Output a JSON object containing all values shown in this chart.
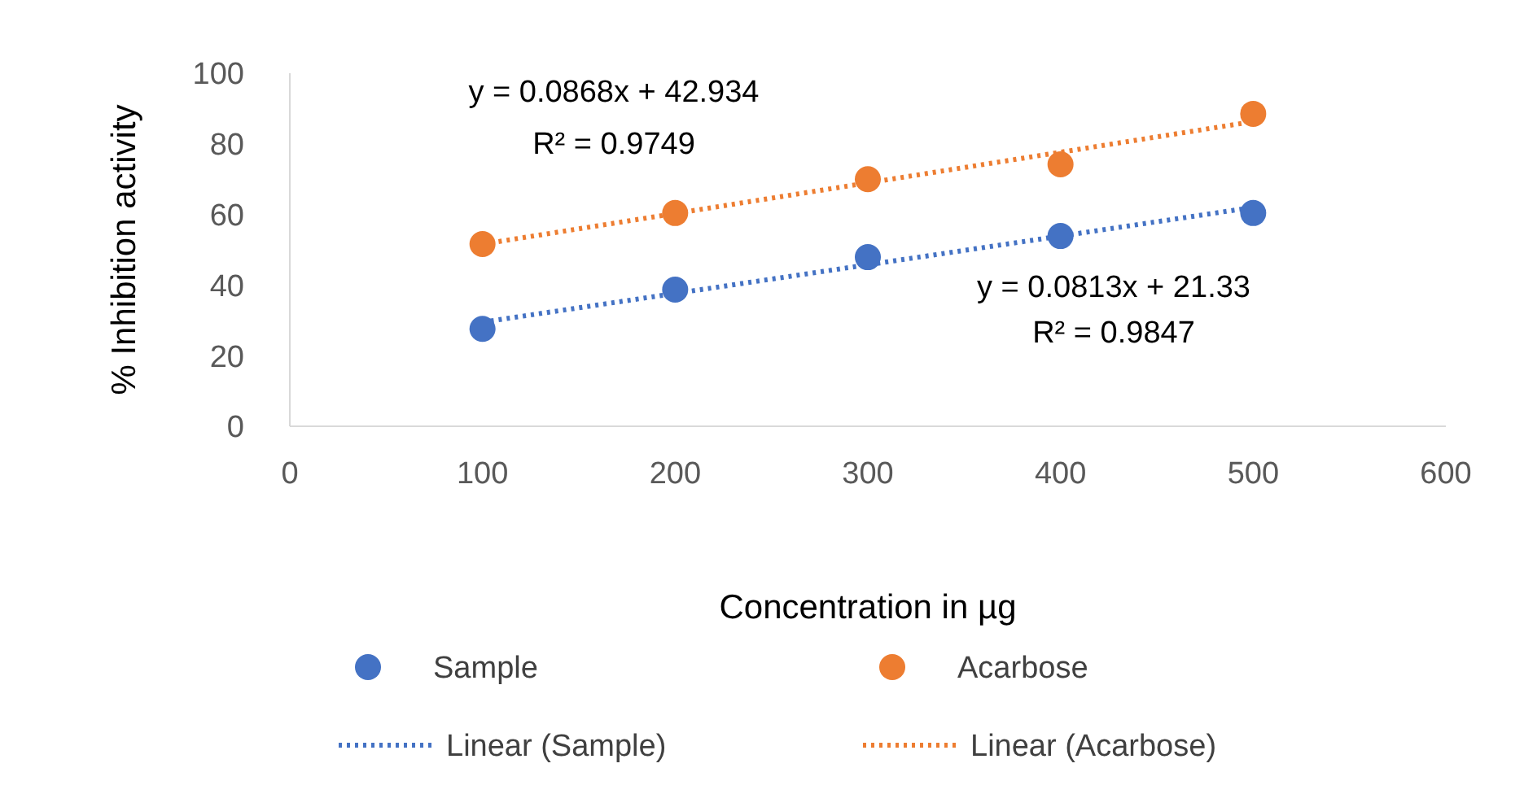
{
  "chart_data": {
    "type": "scatter",
    "xlabel": "Concentration in µg",
    "ylabel": "% Inhibition activity",
    "xlim": [
      0,
      600
    ],
    "xticks": [
      0,
      100,
      200,
      300,
      400,
      500,
      600
    ],
    "ylim": [
      0,
      100
    ],
    "yticks": [
      0,
      20,
      40,
      60,
      80,
      100
    ],
    "grid": false,
    "legend": "bottom",
    "marker": "circle",
    "series": [
      {
        "name": "Sample",
        "color": "#4472c4",
        "x": [
          100,
          200,
          300,
          400,
          500
        ],
        "values": [
          27.6,
          38.7,
          47.9,
          53.9,
          60.4
        ]
      },
      {
        "name": "Acarbose",
        "color": "#ed7d31",
        "x": [
          100,
          200,
          300,
          400,
          500
        ],
        "values": [
          51.6,
          60.4,
          70,
          74.2,
          88.5
        ]
      },
      {
        "name": "Linear (Sample)",
        "type": "line",
        "line_style": "dotted",
        "marker": "none",
        "color": "#4472c4",
        "x": [
          100,
          500
        ],
        "values": [
          29.5,
          62
        ]
      },
      {
        "name": "Linear (Acarbose)",
        "type": "line",
        "line_style": "dotted",
        "marker": "none",
        "color": "#ed7d31",
        "x": [
          100,
          500
        ],
        "values": [
          51.6,
          86.3
        ]
      }
    ],
    "annotations": [
      "y = 0.0868x + 42.934",
      "R² = 0.9749",
      "y = 0.0813x + 21.33",
      "R² = 0.9847"
    ]
  }
}
